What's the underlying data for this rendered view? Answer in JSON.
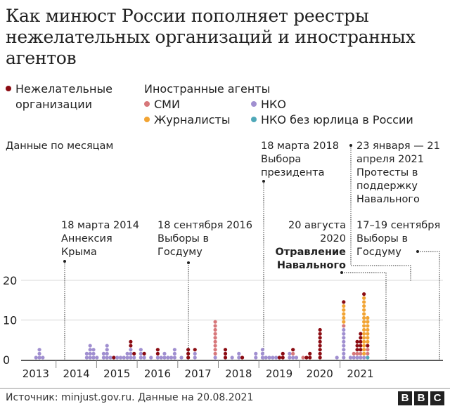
{
  "title": "Как минюст России пополняет реестры нежелательных организаций и иностранных агентов",
  "legend": {
    "undesirable": {
      "label": "Нежелательные организации",
      "color": "#8b0b12"
    },
    "foreign_agents_heading": "Иностранные агенты",
    "media": {
      "label": "СМИ",
      "color": "#d7777a"
    },
    "nko": {
      "label": "НКО",
      "color": "#a08fd0"
    },
    "journalists": {
      "label": "Журналисты",
      "color": "#f2a433"
    },
    "nko_no_entity": {
      "label": "НКО без юрлица в России",
      "color": "#4fa8b8"
    }
  },
  "subtitle": "Данные по месяцам",
  "annotations": [
    {
      "id": "crimea",
      "date": "18 марта 2014",
      "text": "Аннексия Крыма"
    },
    {
      "id": "duma2016",
      "date": "18 сентября 2016",
      "text": "Выборы в Госдуму"
    },
    {
      "id": "pres2018",
      "date": "18 марта 2018",
      "text": "Выбора президента"
    },
    {
      "id": "protests",
      "date": "23 января — 21 апреля 2021",
      "text": "Протесты в поддержку Навального"
    },
    {
      "id": "poison",
      "date": "20 августа 2020",
      "text": "Отравление Навального"
    },
    {
      "id": "duma2021",
      "date": "17–19 сентября",
      "text": "Выборы в Госдуму"
    }
  ],
  "source": "Источник: minjust.gov.ru. Данные на 20.08.2021",
  "logo": [
    "B",
    "B",
    "C"
  ],
  "chart_data": {
    "type": "bar",
    "subtype": "stacked dot plot (monthly)",
    "title": "Как минюст России пополняет реестры нежелательных организаций и иностранных агентов",
    "subtitle": "Данные по месяцам",
    "xlabel": "",
    "ylabel": "",
    "yticks": [
      0,
      10,
      20
    ],
    "ylim": [
      0,
      22
    ],
    "xticks": [
      "2013",
      "2014",
      "2015",
      "2016",
      "2017",
      "2018",
      "2019",
      "2020",
      "2021"
    ],
    "grid": true,
    "series_names": [
      "Нежелательные организации",
      "СМИ",
      "НКО",
      "Журналисты",
      "НКО без юрлица в России"
    ],
    "columns": [
      {
        "period": "2013-07",
        "u": 0,
        "m": 0,
        "n": 1,
        "j": 0,
        "f": 0
      },
      {
        "period": "2013-08",
        "u": 0,
        "m": 0,
        "n": 3,
        "j": 0,
        "f": 0
      },
      {
        "period": "2013-09",
        "u": 0,
        "m": 0,
        "n": 1,
        "j": 0,
        "f": 0
      },
      {
        "period": "2014-10",
        "u": 0,
        "m": 0,
        "n": 2,
        "j": 0,
        "f": 0
      },
      {
        "period": "2014-11",
        "u": 0,
        "m": 0,
        "n": 4,
        "j": 0,
        "f": 0
      },
      {
        "period": "2014-12",
        "u": 0,
        "m": 0,
        "n": 3,
        "j": 0,
        "f": 0
      },
      {
        "period": "2015-01",
        "u": 0,
        "m": 0,
        "n": 1,
        "j": 0,
        "f": 0
      },
      {
        "period": "2015-03",
        "u": 0,
        "m": 0,
        "n": 2,
        "j": 0,
        "f": 0
      },
      {
        "period": "2015-04",
        "u": 0,
        "m": 0,
        "n": 4,
        "j": 0,
        "f": 0
      },
      {
        "period": "2015-05",
        "u": 0,
        "m": 0,
        "n": 1,
        "j": 0,
        "f": 0
      },
      {
        "period": "2015-06",
        "u": 1,
        "m": 0,
        "n": 0,
        "j": 0,
        "f": 0
      },
      {
        "period": "2015-07",
        "u": 0,
        "m": 0,
        "n": 1,
        "j": 0,
        "f": 0
      },
      {
        "period": "2015-08",
        "u": 0,
        "m": 0,
        "n": 1,
        "j": 0,
        "f": 0
      },
      {
        "period": "2015-09",
        "u": 0,
        "m": 0,
        "n": 1,
        "j": 0,
        "f": 0
      },
      {
        "period": "2015-10",
        "u": 0,
        "m": 0,
        "n": 2,
        "j": 0,
        "f": 0
      },
      {
        "period": "2015-11",
        "u": 2,
        "m": 0,
        "n": 3,
        "j": 0,
        "f": 0
      },
      {
        "period": "2015-12",
        "u": 1,
        "m": 0,
        "n": 1,
        "j": 0,
        "f": 0
      },
      {
        "period": "2016-02",
        "u": 0,
        "m": 0,
        "n": 3,
        "j": 0,
        "f": 0
      },
      {
        "period": "2016-03",
        "u": 1,
        "m": 0,
        "n": 1,
        "j": 0,
        "f": 0
      },
      {
        "period": "2016-05",
        "u": 0,
        "m": 0,
        "n": 1,
        "j": 0,
        "f": 0
      },
      {
        "period": "2016-07",
        "u": 2,
        "m": 0,
        "n": 1,
        "j": 0,
        "f": 0
      },
      {
        "period": "2016-08",
        "u": 0,
        "m": 0,
        "n": 1,
        "j": 0,
        "f": 0
      },
      {
        "period": "2016-09",
        "u": 0,
        "m": 0,
        "n": 2,
        "j": 0,
        "f": 0
      },
      {
        "period": "2016-10",
        "u": 0,
        "m": 0,
        "n": 1,
        "j": 0,
        "f": 0
      },
      {
        "period": "2016-11",
        "u": 0,
        "m": 0,
        "n": 1,
        "j": 0,
        "f": 0
      },
      {
        "period": "2016-12",
        "u": 0,
        "m": 0,
        "n": 3,
        "j": 0,
        "f": 0
      },
      {
        "period": "2017-02",
        "u": 0,
        "m": 0,
        "n": 1,
        "j": 0,
        "f": 0
      },
      {
        "period": "2017-04",
        "u": 3,
        "m": 0,
        "n": 0,
        "j": 0,
        "f": 0
      },
      {
        "period": "2017-06",
        "u": 1,
        "m": 0,
        "n": 2,
        "j": 0,
        "f": 0
      },
      {
        "period": "2017-12",
        "u": 0,
        "m": 9,
        "n": 1,
        "j": 0,
        "f": 0
      },
      {
        "period": "2018-03",
        "u": 3,
        "m": 0,
        "n": 0,
        "j": 0,
        "f": 0
      },
      {
        "period": "2018-05",
        "u": 0,
        "m": 0,
        "n": 1,
        "j": 0,
        "f": 0
      },
      {
        "period": "2018-07",
        "u": 0,
        "m": 0,
        "n": 2,
        "j": 0,
        "f": 0
      },
      {
        "period": "2018-08",
        "u": 1,
        "m": 0,
        "n": 0,
        "j": 0,
        "f": 0
      },
      {
        "period": "2018-12",
        "u": 0,
        "m": 0,
        "n": 2,
        "j": 0,
        "f": 0
      },
      {
        "period": "2019-02",
        "u": 0,
        "m": 0,
        "n": 3,
        "j": 0,
        "f": 0
      },
      {
        "period": "2019-03",
        "u": 0,
        "m": 0,
        "n": 1,
        "j": 0,
        "f": 0
      },
      {
        "period": "2019-04",
        "u": 0,
        "m": 0,
        "n": 1,
        "j": 0,
        "f": 0
      },
      {
        "period": "2019-05",
        "u": 0,
        "m": 0,
        "n": 1,
        "j": 0,
        "f": 0
      },
      {
        "period": "2019-06",
        "u": 0,
        "m": 0,
        "n": 1,
        "j": 0,
        "f": 0
      },
      {
        "period": "2019-07",
        "u": 1,
        "m": 0,
        "n": 0,
        "j": 0,
        "f": 0
      },
      {
        "period": "2019-08",
        "u": 2,
        "m": 0,
        "n": 0,
        "j": 0,
        "f": 0
      },
      {
        "period": "2019-10",
        "u": 0,
        "m": 0,
        "n": 2,
        "j": 0,
        "f": 0
      },
      {
        "period": "2019-11",
        "u": 1,
        "m": 1,
        "n": 1,
        "j": 0,
        "f": 0
      },
      {
        "period": "2019-12",
        "u": 0,
        "m": 0,
        "n": 1,
        "j": 0,
        "f": 0
      },
      {
        "period": "2020-02",
        "u": 0,
        "m": 1,
        "n": 0,
        "j": 0,
        "f": 0
      },
      {
        "period": "2020-03",
        "u": 1,
        "m": 0,
        "n": 0,
        "j": 0,
        "f": 0
      },
      {
        "period": "2020-04",
        "u": 2,
        "m": 0,
        "n": 0,
        "j": 0,
        "f": 0
      },
      {
        "period": "2020-07",
        "u": 8,
        "m": 0,
        "n": 0,
        "j": 0,
        "f": 0
      },
      {
        "period": "2020-12",
        "u": 0,
        "m": 0,
        "n": 1,
        "j": 0,
        "f": 0
      },
      {
        "period": "2021-02",
        "u": 0,
        "m": 1,
        "n": 8,
        "j": 5,
        "f": 0,
        "u_top": 1
      },
      {
        "period": "2021-04",
        "u": 0,
        "m": 0,
        "n": 1,
        "j": 0,
        "f": 0
      },
      {
        "period": "2021-05",
        "u": 0,
        "m": 1,
        "n": 1,
        "j": 0,
        "f": 0
      },
      {
        "period": "2021-06",
        "u": 3,
        "m": 1,
        "n": 1,
        "j": 0,
        "f": 0
      },
      {
        "period": "2021-07",
        "u": 5,
        "m": 1,
        "n": 1,
        "j": 0,
        "f": 0
      },
      {
        "period": "2021-08a",
        "u": 0,
        "m": 0,
        "n": 1,
        "j": 15,
        "f": 0,
        "u_top": 1
      },
      {
        "period": "2021-08b",
        "u": 1,
        "m": 2,
        "n": 0,
        "j": 7,
        "f": 1
      }
    ]
  }
}
